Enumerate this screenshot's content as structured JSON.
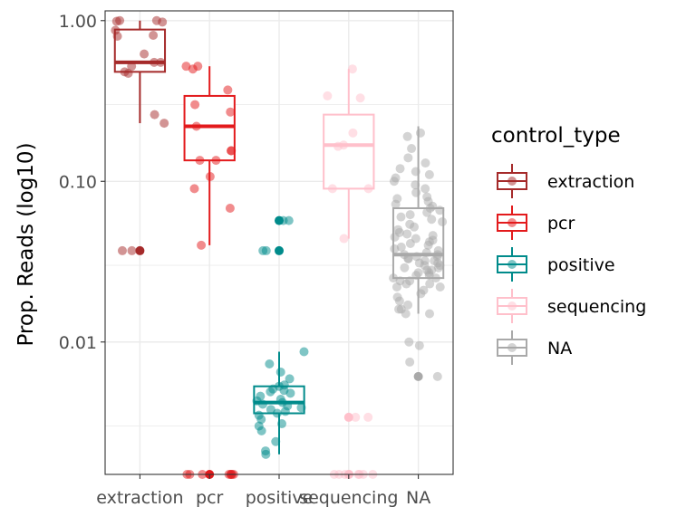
{
  "chart_data": {
    "type": "box",
    "title": "",
    "xlabel": "",
    "ylabel": "Prop. Reads (log10)",
    "y_scale": "log10",
    "ylim": [
      0.0015,
      1.15
    ],
    "y_ticks": [
      {
        "value": 1.0,
        "label": "1.00"
      },
      {
        "value": 0.1,
        "label": "0.10"
      },
      {
        "value": 0.01,
        "label": "0.01"
      }
    ],
    "grid": true,
    "legend": {
      "title": "control_type",
      "position": "right",
      "entries": [
        {
          "label": "extraction",
          "color": "#A52A2A"
        },
        {
          "label": "pcr",
          "color": "#E31A1C"
        },
        {
          "label": "positive",
          "color": "#008B8B"
        },
        {
          "label": "sequencing",
          "color": "#FFC0CB"
        },
        {
          "label": "NA",
          "color": "#A9A9A9"
        }
      ]
    },
    "categories": [
      "extraction",
      "pcr",
      "positive",
      "sequencing",
      "NA"
    ],
    "series": [
      {
        "category": "extraction",
        "color": "#A52A2A",
        "box": {
          "whisker_low": 0.23,
          "q1": 0.48,
          "median": 0.55,
          "q3": 0.88,
          "whisker_high": 1.0
        },
        "outliers": [
          0.037
        ],
        "points": [
          1.0,
          1.0,
          0.98,
          0.99,
          0.87,
          0.8,
          0.81,
          0.62,
          0.55,
          0.55,
          0.52,
          0.48,
          0.47,
          0.26,
          0.23,
          0.037,
          0.037
        ]
      },
      {
        "category": "pcr",
        "color": "#E31A1C",
        "box": {
          "whisker_low": 0.04,
          "q1": 0.135,
          "median": 0.22,
          "q3": 0.34,
          "whisker_high": 0.52
        },
        "outliers": [
          0.0015
        ],
        "points": [
          0.52,
          0.52,
          0.5,
          0.37,
          0.3,
          0.27,
          0.22,
          0.155,
          0.155,
          0.135,
          0.135,
          0.107,
          0.09,
          0.068,
          0.04,
          0.0015,
          0.0015,
          0.0015,
          0.0015,
          0.0015,
          0.0015,
          0.0015,
          0.0015
        ]
      },
      {
        "category": "positive",
        "color": "#008B8B",
        "box": {
          "whisker_low": 0.002,
          "q1": 0.0036,
          "median": 0.0042,
          "q3": 0.0053,
          "whisker_high": 0.0087
        },
        "outliers": [
          0.057,
          0.037
        ],
        "points": [
          0.057,
          0.057,
          0.037,
          0.037,
          0.0087,
          0.0073,
          0.0065,
          0.0059,
          0.0054,
          0.0053,
          0.0051,
          0.005,
          0.0049,
          0.0048,
          0.0046,
          0.0044,
          0.0043,
          0.0042,
          0.0041,
          0.004,
          0.0039,
          0.0038,
          0.0037,
          0.0036,
          0.0035,
          0.0033,
          0.0031,
          0.003,
          0.0028,
          0.0024,
          0.0021,
          0.002
        ]
      },
      {
        "category": "sequencing",
        "color": "#FFC0CB",
        "box": {
          "whisker_low": 0.044,
          "q1": 0.09,
          "median": 0.168,
          "q3": 0.26,
          "whisker_high": 0.5
        },
        "outliers": [
          0.0034,
          0.0015
        ],
        "points": [
          0.5,
          0.34,
          0.33,
          0.2,
          0.168,
          0.165,
          0.09,
          0.09,
          0.044,
          0.0034,
          0.0034,
          0.0015,
          0.0015,
          0.0015,
          0.0015,
          0.0015,
          0.0015,
          0.0015,
          0.0015
        ]
      },
      {
        "category": "NA",
        "color": "#A9A9A9",
        "box": {
          "whisker_low": 0.015,
          "q1": 0.025,
          "median": 0.035,
          "q3": 0.068,
          "whisker_high": 0.22
        },
        "outliers": [
          0.0061
        ],
        "points": [
          0.2,
          0.19,
          0.16,
          0.14,
          0.13,
          0.12,
          0.115,
          0.11,
          0.105,
          0.1,
          0.095,
          0.09,
          0.085,
          0.08,
          0.078,
          0.075,
          0.072,
          0.07,
          0.068,
          0.066,
          0.064,
          0.062,
          0.06,
          0.058,
          0.056,
          0.054,
          0.052,
          0.05,
          0.048,
          0.047,
          0.046,
          0.045,
          0.044,
          0.043,
          0.042,
          0.041,
          0.04,
          0.039,
          0.038,
          0.037,
          0.036,
          0.035,
          0.035,
          0.034,
          0.034,
          0.033,
          0.033,
          0.032,
          0.032,
          0.031,
          0.031,
          0.03,
          0.03,
          0.029,
          0.029,
          0.028,
          0.028,
          0.027,
          0.027,
          0.026,
          0.026,
          0.025,
          0.025,
          0.024,
          0.024,
          0.023,
          0.023,
          0.022,
          0.022,
          0.021,
          0.02,
          0.019,
          0.018,
          0.017,
          0.016,
          0.016,
          0.015,
          0.015,
          0.01,
          0.0095,
          0.0075,
          0.0061
        ]
      }
    ]
  }
}
